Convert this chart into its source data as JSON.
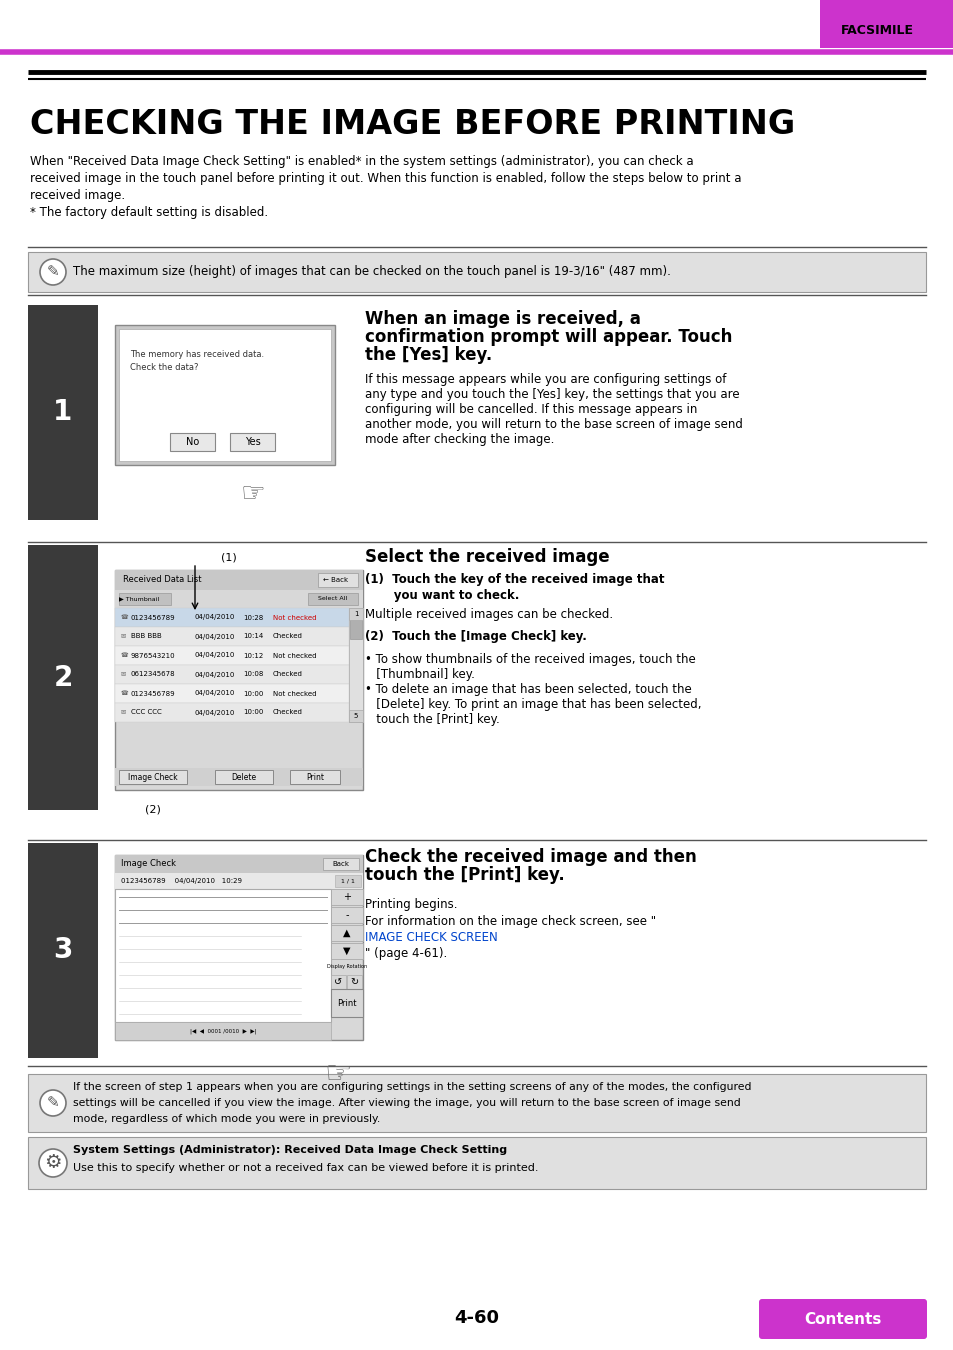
{
  "page_title": "CHECKING THE IMAGE BEFORE PRINTING",
  "header_tab": "FACSIMILE",
  "header_tab_color": "#cc33cc",
  "top_line_color": "#cc33cc",
  "thick_line_color": "#111111",
  "body_bg": "#ffffff",
  "intro_text_lines": [
    "When \"Received Data Image Check Setting\" is enabled* in the system settings (administrator), you can check a",
    "received image in the touch panel before printing it out. When this function is enabled, follow the steps below to print a",
    "received image.",
    "* The factory default setting is disabled."
  ],
  "note_bg": "#e0e0e0",
  "note_text": "The maximum size (height) of images that can be checked on the touch panel is 19-3/16\" (487 mm).",
  "step_bar_color": "#3a3a3a",
  "step1_title_lines": [
    "When an image is received, a",
    "confirmation prompt will appear. Touch",
    "the [Yes] key."
  ],
  "step1_body_lines": [
    "If this message appears while you are configuring settings of",
    "any type and you touch the [Yes] key, the settings that you are",
    "configuring will be cancelled. If this message appears in",
    "another mode, you will return to the base screen of image send",
    "mode after checking the image."
  ],
  "step2_title": "Select the received image",
  "step2_sub1_bold": "(1)  Touch the key of the received image that",
  "step2_sub1_bold2": "       you want to check.",
  "step2_sub1_normal": "Multiple received images can be checked.",
  "step2_sub2_bold": "(2)  Touch the [Image Check] key.",
  "step2_bullets": [
    "• To show thumbnails of the received images, touch the",
    "   [Thumbnail] key.",
    "• To delete an image that has been selected, touch the",
    "   [Delete] key. To print an image that has been selected,",
    "   touch the [Print] key."
  ],
  "step3_title_lines": [
    "Check the received image and then",
    "touch the [Print] key."
  ],
  "step3_body1": "Printing begins.",
  "step3_body2a": "For information on the image check screen, see \"",
  "step3_body2_link": "IMAGE CHECK SCREEN",
  "step3_body2b": "\" (page 4-61).",
  "list_rows": [
    [
      "0123456789",
      "04/04/2010",
      "10:28",
      "Not checked",
      true
    ],
    [
      "BBB BBB",
      "04/04/2010",
      "10:14",
      "Checked",
      false
    ],
    [
      "9876543210",
      "04/04/2010",
      "10:12",
      "Not checked",
      false
    ],
    [
      "0612345678",
      "04/04/2010",
      "10:08",
      "Checked",
      false
    ],
    [
      "0123456789",
      "04/04/2010",
      "10:00",
      "Not checked",
      false
    ],
    [
      "CCC CCC",
      "04/04/2010",
      "10:00",
      "Checked",
      false
    ]
  ],
  "bottom_note1_lines": [
    "If the screen of step 1 appears when you are configuring settings in the setting screens of any of the modes, the configured",
    "settings will be cancelled if you view the image. After viewing the image, you will return to the base screen of image send",
    "mode, regardless of which mode you were in previously."
  ],
  "bottom_note2_title": "System Settings (Administrator): Received Data Image Check Setting",
  "bottom_note2_body": "Use this to specify whether or not a received fax can be viewed before it is printed.",
  "page_num": "4-60",
  "contents_btn_color": "#cc33cc",
  "contents_btn_text": "Contents",
  "link_color": "#0044cc",
  "divider_color": "#555555"
}
